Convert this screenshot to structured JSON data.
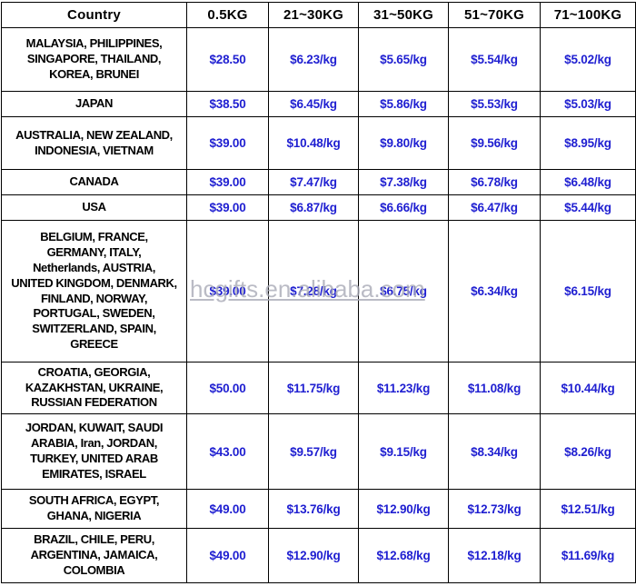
{
  "table": {
    "headers": [
      "Country",
      "0.5KG",
      "21~30KG",
      "31~50KG",
      "51~70KG",
      "71~100KG"
    ],
    "rows": [
      {
        "country": "MALAYSIA, PHILIPPINES,\nSINGAPORE, THAILAND,\nKOREA, BRUNEI",
        "prices": [
          "$28.50",
          "$6.23/kg",
          "$5.65/kg",
          "$5.54/kg",
          "$5.02/kg"
        ]
      },
      {
        "country": "JAPAN",
        "prices": [
          "$38.50",
          "$6.45/kg",
          "$5.86/kg",
          "$5.53/kg",
          "$5.03/kg"
        ]
      },
      {
        "country": "AUSTRALIA, NEW ZEALAND,\nINDONESIA, VIETNAM",
        "prices": [
          "$39.00",
          "$10.48/kg",
          "$9.80/kg",
          "$9.56/kg",
          "$8.95/kg"
        ]
      },
      {
        "country": "CANADA",
        "prices": [
          "$39.00",
          "$7.47/kg",
          "$7.38/kg",
          "$6.78/kg",
          "$6.48/kg"
        ]
      },
      {
        "country": "USA",
        "prices": [
          "$39.00",
          "$6.87/kg",
          "$6.66/kg",
          "$6.47/kg",
          "$5.44/kg"
        ]
      },
      {
        "country": "BELGIUM, FRANCE,\nGERMANY, ITALY,\nNetherlands, AUSTRIA,\nUNITED KINGDOM, DENMARK,\nFINLAND, NORWAY,\nPORTUGAL, SWEDEN,\nSWITZERLAND, SPAIN,\nGREECE",
        "prices": [
          "$39.00",
          "$7.28/kg",
          "$6.75/kg",
          "$6.34/kg",
          "$6.15/kg"
        ]
      },
      {
        "country": "CROATIA, GEORGIA,\nKAZAKHSTAN, UKRAINE,\nRUSSIAN FEDERATION",
        "prices": [
          "$50.00",
          "$11.75/kg",
          "$11.23/kg",
          "$11.08/kg",
          "$10.44/kg"
        ]
      },
      {
        "country": "JORDAN, KUWAIT, SAUDI\nARABIA, Iran, JORDAN,\nTURKEY, UNITED ARAB\nEMIRATES, ISRAEL",
        "prices": [
          "$43.00",
          "$9.57/kg",
          "$9.15/kg",
          "$8.34/kg",
          "$8.26/kg"
        ]
      },
      {
        "country": "SOUTH AFRICA, EGYPT,\nGHANA, NIGERIA",
        "prices": [
          "$49.00",
          "$13.76/kg",
          "$12.90/kg",
          "$12.73/kg",
          "$12.51/kg"
        ]
      },
      {
        "country": "BRAZIL, CHILE, PERU,\nARGENTINA, JAMAICA,\nCOLOMBIA",
        "prices": [
          "$49.00",
          "$12.90/kg",
          "$12.68/kg",
          "$12.18/kg",
          "$11.69/kg"
        ]
      }
    ]
  },
  "watermark": {
    "text": "hcgifts.en.alibaba.com"
  },
  "colors": {
    "price": "#1f1fd1",
    "text": "#000000",
    "border": "#000000",
    "watermark": "#a9abb7",
    "background": "#ffffff"
  }
}
